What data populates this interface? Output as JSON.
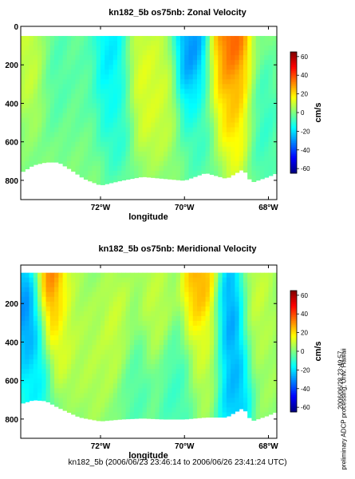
{
  "figure": {
    "footer": "kn182_5b (2006/06/23 23:46:14 to 2006/06/26 23:41:24 UTC)",
    "credit": "preliminary ADCP processing,  Univ. Hawaii",
    "stamp": "2006/06/28 23:49:57"
  },
  "chart_data": [
    {
      "type": "heatmap",
      "title": "kn182_5b os75nb: Zonal Velocity",
      "xlabel": "longitude",
      "ylabel": "",
      "x_ticks": [
        {
          "value": -72,
          "label": "72°W"
        },
        {
          "value": -70,
          "label": "70°W"
        },
        {
          "value": -68,
          "label": "68°W"
        }
      ],
      "y_ticks": [
        0,
        200,
        400,
        600,
        800
      ],
      "xlim": [
        -73.9,
        -67.8
      ],
      "ylim": [
        900,
        0
      ],
      "colorbar": {
        "label": "cm/s",
        "range": [
          -65,
          65
        ],
        "ticks": [
          60,
          40,
          20,
          0,
          -20,
          -40,
          -60
        ]
      },
      "depth_range": [
        50,
        800
      ],
      "bottom_edge": [
        [
          -73.9,
          760
        ],
        [
          -73.6,
          720
        ],
        [
          -73.3,
          705
        ],
        [
          -73.0,
          705
        ],
        [
          -72.7,
          745
        ],
        [
          -72.4,
          790
        ],
        [
          -72.0,
          825
        ],
        [
          -71.5,
          800
        ],
        [
          -71.0,
          780
        ],
        [
          -70.5,
          790
        ],
        [
          -70.0,
          800
        ],
        [
          -69.5,
          760
        ],
        [
          -69.0,
          790
        ],
        [
          -68.6,
          740
        ],
        [
          -68.4,
          810
        ],
        [
          -68.0,
          780
        ],
        [
          -67.8,
          760
        ]
      ],
      "features": [
        {
          "lon": -73.6,
          "depth": 150,
          "value": 12
        },
        {
          "lon": -73.1,
          "depth": 200,
          "value": -8
        },
        {
          "lon": -72.4,
          "depth": 200,
          "value": -5
        },
        {
          "lon": -71.8,
          "depth": 150,
          "value": -24
        },
        {
          "lon": -71.6,
          "depth": 450,
          "value": -14
        },
        {
          "lon": -71.0,
          "depth": 300,
          "value": 15
        },
        {
          "lon": -70.6,
          "depth": 350,
          "value": 12
        },
        {
          "lon": -69.8,
          "depth": 140,
          "value": -38
        },
        {
          "lon": -69.6,
          "depth": 500,
          "value": -10
        },
        {
          "lon": -69.1,
          "depth": 300,
          "value": 22
        },
        {
          "lon": -68.9,
          "depth": 90,
          "value": 50
        },
        {
          "lon": -68.7,
          "depth": 420,
          "value": 25
        },
        {
          "lon": -68.2,
          "depth": 500,
          "value": -12
        }
      ]
    },
    {
      "type": "heatmap",
      "title": "kn182_5b os75nb: Meridional Velocity",
      "xlabel": "longitude",
      "ylabel": "",
      "x_ticks": [
        {
          "value": -72,
          "label": "72°W"
        },
        {
          "value": -70,
          "label": "70°W"
        },
        {
          "value": -68,
          "label": "68°W"
        }
      ],
      "y_ticks": [
        200,
        400,
        600,
        800
      ],
      "xlim": [
        -73.9,
        -67.8
      ],
      "ylim": [
        900,
        0
      ],
      "colorbar": {
        "label": "cm/s",
        "range": [
          -65,
          65
        ],
        "ticks": [
          60,
          40,
          20,
          0,
          -20,
          -40,
          -60
        ]
      },
      "depth_range": [
        40,
        800
      ],
      "bottom_edge": [
        [
          -73.9,
          720
        ],
        [
          -73.6,
          700
        ],
        [
          -73.3,
          705
        ],
        [
          -73.0,
          740
        ],
        [
          -72.5,
          790
        ],
        [
          -72.0,
          810
        ],
        [
          -71.5,
          800
        ],
        [
          -71.0,
          795
        ],
        [
          -70.5,
          800
        ],
        [
          -70.0,
          800
        ],
        [
          -69.5,
          790
        ],
        [
          -69.0,
          790
        ],
        [
          -68.6,
          740
        ],
        [
          -68.4,
          810
        ],
        [
          -68.0,
          780
        ],
        [
          -67.8,
          760
        ]
      ],
      "features": [
        {
          "lon": -73.7,
          "depth": 250,
          "value": -40
        },
        {
          "lon": -73.6,
          "depth": 600,
          "value": -20
        },
        {
          "lon": -73.2,
          "depth": 90,
          "value": 45
        },
        {
          "lon": -72.9,
          "depth": 300,
          "value": 15
        },
        {
          "lon": -72.6,
          "depth": 250,
          "value": 5
        },
        {
          "lon": -72.2,
          "depth": 500,
          "value": 8
        },
        {
          "lon": -71.6,
          "depth": 350,
          "value": 12
        },
        {
          "lon": -71.2,
          "depth": 600,
          "value": -8
        },
        {
          "lon": -70.7,
          "depth": 200,
          "value": 10
        },
        {
          "lon": -70.2,
          "depth": 650,
          "value": -10
        },
        {
          "lon": -69.6,
          "depth": 100,
          "value": 35
        },
        {
          "lon": -69.5,
          "depth": 450,
          "value": 10
        },
        {
          "lon": -68.9,
          "depth": 250,
          "value": -35
        },
        {
          "lon": -68.8,
          "depth": 650,
          "value": -30
        },
        {
          "lon": -68.3,
          "depth": 200,
          "value": 12
        },
        {
          "lon": -68.0,
          "depth": 500,
          "value": 5
        }
      ]
    }
  ]
}
